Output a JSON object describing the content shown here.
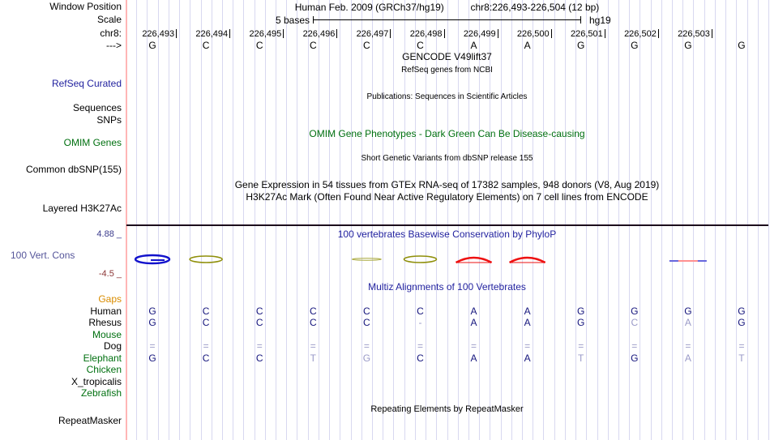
{
  "header": {
    "assembly_title": "Human Feb. 2009 (GRCh37/hg19)",
    "position_title": "chr8:226,493-226,504 (12 bp)",
    "scale_value": "5 bases",
    "scale_db": "hg19"
  },
  "gutter": {
    "window_position": "Window Position",
    "scale": "Scale",
    "chrom": "chr8:",
    "strand": "--->",
    "refseq_curated": "RefSeq Curated",
    "sequences": "Sequences",
    "snps": "SNPs",
    "omim_genes": "OMIM Genes",
    "common_dbsnp": "Common dbSNP(155)",
    "layered_h3k27ac": "Layered H3K27Ac",
    "cons_max": "4.88 _",
    "vert_cons": "100 Vert. Cons",
    "cons_min": "-4.5 _",
    "repeatmasker": "RepeatMasker"
  },
  "tracks": {
    "gencode_title": "GENCODE V49lift37",
    "refseq_note": "RefSeq genes from NCBI",
    "publications_note": "Publications: Sequences in Scientific Articles",
    "omim_note": "OMIM Gene Phenotypes - Dark Green Can Be Disease-causing",
    "dbsnp_note": "Short Genetic Variants from dbSNP release 155",
    "gtex_note": "Gene Expression in 54 tissues from GTEx RNA-seq of 17382 samples, 948 donors (V8, Aug 2019)",
    "h3k27ac_note": "H3K27Ac Mark (Often Found Near Active Regulatory Elements) on 7 cell lines from ENCODE",
    "phylop_title": "100 vertebrates Basewise Conservation by PhyloP",
    "multiz_title": "Multiz Alignments of 100 Vertebrates",
    "repeat_note": "Repeating Elements by RepeatMasker"
  },
  "ruler": {
    "positions": [
      "226,493",
      "226,494",
      "226,495",
      "226,496",
      "226,497",
      "226,498",
      "226,499",
      "226,500",
      "226,501",
      "226,502",
      "226,503"
    ],
    "bases": [
      "G",
      "C",
      "C",
      "C",
      "C",
      "C",
      "A",
      "A",
      "G",
      "G",
      "G",
      "G"
    ]
  },
  "phylop": {
    "marks": [
      {
        "col": 1,
        "glyph": "G",
        "color": "blue"
      },
      {
        "col": 2,
        "glyph": "C",
        "color": "olive"
      },
      {
        "col": 5,
        "glyph": "C-flat",
        "color": "olive-faint"
      },
      {
        "col": 6,
        "glyph": "C",
        "color": "olive"
      },
      {
        "col": 7,
        "glyph": "A",
        "color": "red"
      },
      {
        "col": 8,
        "glyph": "A",
        "color": "red"
      },
      {
        "col": 11,
        "glyph": "flat",
        "color": "blue-pink"
      }
    ],
    "colors": {
      "blue": "#1212cc",
      "olive": "#8f8f0a",
      "olive-faint": "#a8a83c",
      "red": "#ee1111",
      "line-blue": "#6666dd",
      "line-pink": "#ff9090"
    }
  },
  "multiz": {
    "species": [
      {
        "label": "Gaps",
        "color": "orange",
        "cells": [
          null,
          null,
          null,
          null,
          null,
          null,
          null,
          null,
          null,
          null,
          null,
          null
        ]
      },
      {
        "label": "Human",
        "color": "navy",
        "cells": [
          {
            "t": "G"
          },
          {
            "t": "C"
          },
          {
            "t": "C"
          },
          {
            "t": "C"
          },
          {
            "t": "C"
          },
          {
            "t": "C"
          },
          {
            "t": "A"
          },
          {
            "t": "A"
          },
          {
            "t": "G"
          },
          {
            "t": "G"
          },
          {
            "t": "G"
          },
          {
            "t": "G"
          }
        ]
      },
      {
        "label": "Rhesus",
        "color": "navy",
        "cells": [
          {
            "t": "G"
          },
          {
            "t": "C"
          },
          {
            "t": "C"
          },
          {
            "t": "C"
          },
          {
            "t": "C"
          },
          {
            "t": "-",
            "light": true
          },
          {
            "t": "A"
          },
          {
            "t": "A"
          },
          {
            "t": "G"
          },
          {
            "t": "C",
            "light": true
          },
          {
            "t": "A",
            "light": true
          },
          {
            "t": "G"
          }
        ]
      },
      {
        "label": "Mouse",
        "color": "green",
        "cells": [
          null,
          null,
          null,
          null,
          null,
          null,
          null,
          null,
          null,
          null,
          null,
          null
        ]
      },
      {
        "label": "Dog",
        "color": "navy",
        "cells": [
          {
            "t": "=",
            "light": true
          },
          {
            "t": "=",
            "light": true
          },
          {
            "t": "=",
            "light": true
          },
          {
            "t": "=",
            "light": true
          },
          {
            "t": "=",
            "light": true
          },
          {
            "t": "=",
            "light": true
          },
          {
            "t": "=",
            "light": true
          },
          {
            "t": "=",
            "light": true
          },
          {
            "t": "=",
            "light": true
          },
          {
            "t": "=",
            "light": true
          },
          {
            "t": "=",
            "light": true
          },
          {
            "t": "=",
            "light": true
          }
        ]
      },
      {
        "label": "Elephant",
        "color": "green",
        "cells": [
          {
            "t": "G"
          },
          {
            "t": "C"
          },
          {
            "t": "C"
          },
          {
            "t": "T",
            "light": true
          },
          {
            "t": "G",
            "light": true
          },
          {
            "t": "C"
          },
          {
            "t": "A"
          },
          {
            "t": "A"
          },
          {
            "t": "T",
            "light": true
          },
          {
            "t": "G"
          },
          {
            "t": "A",
            "light": true
          },
          {
            "t": "T",
            "light": true
          }
        ]
      },
      {
        "label": "Chicken",
        "color": "green",
        "cells": [
          null,
          null,
          null,
          null,
          null,
          null,
          null,
          null,
          null,
          null,
          null,
          null
        ]
      },
      {
        "label": "X_tropicalis",
        "color": "navy",
        "cells": [
          null,
          null,
          null,
          null,
          null,
          null,
          null,
          null,
          null,
          null,
          null,
          null
        ]
      },
      {
        "label": "Zebrafish",
        "color": "green",
        "cells": [
          null,
          null,
          null,
          null,
          null,
          null,
          null,
          null,
          null,
          null,
          null,
          null
        ]
      }
    ]
  }
}
